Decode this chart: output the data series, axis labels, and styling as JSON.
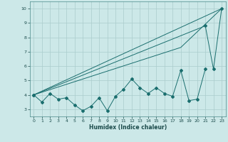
{
  "title": "",
  "xlabel": "Humidex (Indice chaleur)",
  "ylabel": "",
  "background_color": "#cce8e8",
  "grid_color": "#aacccc",
  "line_color": "#1a6e6e",
  "x_data": [
    0,
    1,
    2,
    3,
    4,
    5,
    6,
    7,
    8,
    9,
    10,
    11,
    12,
    13,
    14,
    15,
    16,
    17,
    18,
    19,
    20,
    21,
    22,
    23
  ],
  "series": [
    [
      4.0,
      3.5,
      4.1,
      3.7,
      3.8,
      3.3,
      2.9,
      3.2,
      3.8,
      2.9,
      3.9,
      4.4,
      5.1,
      4.5,
      4.1,
      4.5,
      4.1,
      3.9,
      5.7,
      3.6,
      3.7,
      5.8,
      null,
      null
    ],
    [
      4.0,
      null,
      null,
      null,
      null,
      null,
      null,
      null,
      null,
      null,
      null,
      null,
      null,
      null,
      null,
      null,
      null,
      null,
      null,
      null,
      null,
      null,
      null,
      10.0
    ],
    [
      4.0,
      null,
      null,
      null,
      null,
      null,
      null,
      null,
      null,
      null,
      null,
      null,
      null,
      null,
      null,
      null,
      null,
      null,
      7.3,
      null,
      null,
      null,
      null,
      10.0
    ],
    [
      4.0,
      null,
      null,
      null,
      null,
      null,
      null,
      null,
      null,
      null,
      null,
      null,
      null,
      null,
      null,
      null,
      null,
      null,
      null,
      null,
      null,
      8.8,
      5.8,
      10.0
    ]
  ],
  "ylim": [
    2.5,
    10.5
  ],
  "xlim": [
    -0.5,
    23.5
  ],
  "yticks": [
    3,
    4,
    5,
    6,
    7,
    8,
    9,
    10
  ],
  "xticks": [
    0,
    1,
    2,
    3,
    4,
    5,
    6,
    7,
    8,
    9,
    10,
    11,
    12,
    13,
    14,
    15,
    16,
    17,
    18,
    19,
    20,
    21,
    22,
    23
  ]
}
